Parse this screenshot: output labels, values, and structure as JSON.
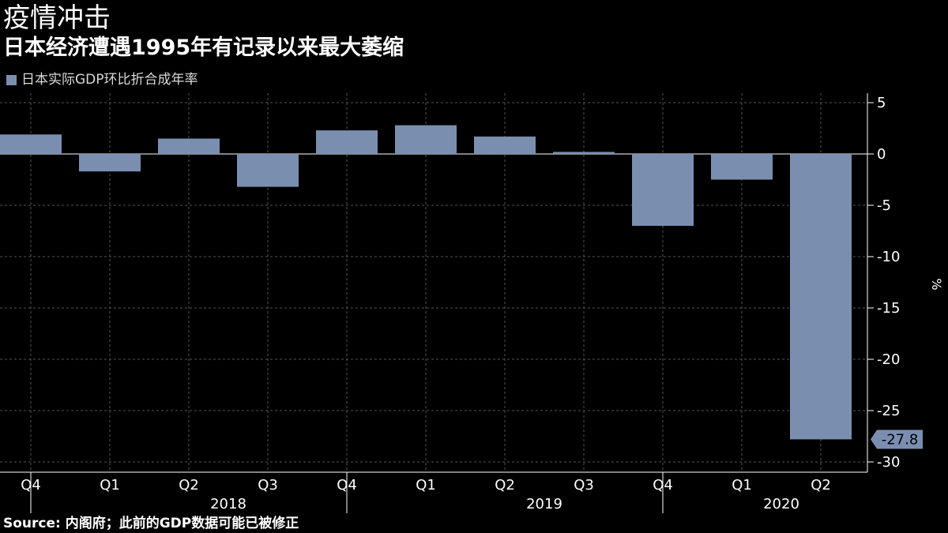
{
  "header": {
    "title": "疫情冲击",
    "subtitle": "日本经济遭遇1995年有记录以来最大萎缩"
  },
  "legend": {
    "label": "日本实际GDP环比折合成年率"
  },
  "source": "Source: 内阁府；此前的GDP数据可能已被修正",
  "colors": {
    "bar": "#7a8fb0",
    "background": "#000000",
    "grid": "#555555",
    "text": "#ffffff"
  },
  "chart_data": {
    "type": "bar",
    "categories": [
      "Q4",
      "Q1",
      "Q2",
      "Q3",
      "Q4",
      "Q1",
      "Q2",
      "Q3",
      "Q4",
      "Q1",
      "Q2"
    ],
    "year_groups": [
      {
        "label": "2018",
        "start": 1,
        "end": 4
      },
      {
        "label": "2019",
        "start": 5,
        "end": 8
      },
      {
        "label": "2020",
        "start": 9,
        "end": 10
      }
    ],
    "series": [
      {
        "name": "日本实际GDP环比折合成年率",
        "values": [
          1.9,
          -1.7,
          1.5,
          -3.2,
          2.3,
          2.8,
          1.7,
          0.2,
          -7.0,
          -2.5,
          -27.8
        ]
      }
    ],
    "ylabel": "%",
    "ylim": [
      -31,
      6
    ],
    "yticks": [
      5,
      0,
      -5,
      -10,
      -15,
      -20,
      -25,
      -30
    ],
    "axis_position": "right",
    "callout": {
      "index": 10,
      "label": "-27.8"
    },
    "grid": true
  }
}
